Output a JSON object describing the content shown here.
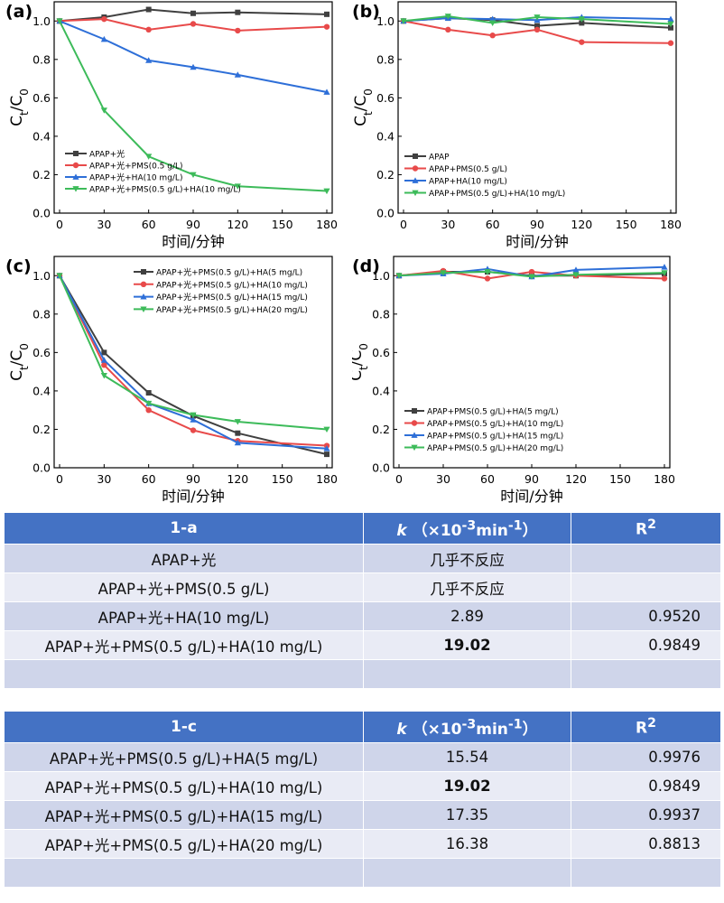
{
  "chart_data": [
    {
      "type": "line",
      "panel_label": "(a)",
      "xlabel": "时间/分钟",
      "ylabel": "Ct/C0",
      "xlim": [
        0,
        180
      ],
      "ylim": [
        0,
        1.1
      ],
      "xticks": [
        0,
        30,
        60,
        90,
        120,
        150,
        180
      ],
      "yticks": [
        0.0,
        0.2,
        0.4,
        0.6,
        0.8,
        1.0
      ],
      "legend_position": "bottom-left",
      "x": [
        0,
        30,
        60,
        90,
        120,
        180
      ],
      "series": [
        {
          "name": "APAP+光",
          "color": "#404040",
          "marker": "square",
          "values": [
            1.0,
            1.02,
            1.06,
            1.04,
            1.045,
            1.035
          ]
        },
        {
          "name": "APAP+光+PMS(0.5 g/L)",
          "color": "#e84a4a",
          "marker": "circle",
          "values": [
            1.0,
            1.01,
            0.955,
            0.985,
            0.95,
            0.97
          ]
        },
        {
          "name": "APAP+光+HA(10 mg/L)",
          "color": "#2e6fd8",
          "marker": "triangle",
          "values": [
            1.0,
            0.905,
            0.795,
            0.76,
            0.72,
            0.63
          ]
        },
        {
          "name": "APAP+光+PMS(0.5 g/L)+HA(10 mg/L)",
          "color": "#3dbb5a",
          "marker": "triangle-down",
          "values": [
            1.0,
            0.535,
            0.295,
            0.2,
            0.14,
            0.115
          ]
        }
      ]
    },
    {
      "type": "line",
      "panel_label": "(b)",
      "xlabel": "时间/分钟",
      "ylabel": "Ct/C0",
      "xlim": [
        0,
        180
      ],
      "ylim": [
        0,
        1.1
      ],
      "xticks": [
        0,
        30,
        60,
        90,
        120,
        150,
        180
      ],
      "yticks": [
        0.0,
        0.2,
        0.4,
        0.6,
        0.8,
        1.0
      ],
      "legend_position": "bottom-left",
      "x": [
        0,
        30,
        60,
        90,
        120,
        180
      ],
      "series": [
        {
          "name": "APAP",
          "color": "#404040",
          "marker": "square",
          "values": [
            1.0,
            1.015,
            1.005,
            0.975,
            0.99,
            0.965
          ]
        },
        {
          "name": "APAP+PMS(0.5 g/L)",
          "color": "#e84a4a",
          "marker": "circle",
          "values": [
            1.0,
            0.955,
            0.925,
            0.955,
            0.89,
            0.885
          ]
        },
        {
          "name": "APAP+HA(10 mg/L)",
          "color": "#2e6fd8",
          "marker": "triangle",
          "values": [
            1.0,
            1.015,
            1.01,
            1.005,
            1.02,
            1.01
          ]
        },
        {
          "name": "APAP+PMS(0.5 g/L)+HA(10 mg/L)",
          "color": "#3dbb5a",
          "marker": "triangle-down",
          "values": [
            1.0,
            1.025,
            0.99,
            1.02,
            1.01,
            0.985
          ]
        }
      ]
    },
    {
      "type": "line",
      "panel_label": "(c)",
      "xlabel": "时间/分钟",
      "ylabel": "Ct/C0",
      "xlim": [
        0,
        180
      ],
      "ylim": [
        0,
        1.1
      ],
      "xticks": [
        0,
        30,
        60,
        90,
        120,
        150,
        180
      ],
      "yticks": [
        0.0,
        0.2,
        0.4,
        0.6,
        0.8,
        1.0
      ],
      "legend_position": "top-right",
      "x": [
        0,
        30,
        60,
        90,
        120,
        180
      ],
      "series": [
        {
          "name": "APAP+光+PMS(0.5 g/L)+HA(5 mg/L)",
          "color": "#404040",
          "marker": "square",
          "values": [
            1.0,
            0.6,
            0.39,
            0.27,
            0.18,
            0.07
          ]
        },
        {
          "name": "APAP+光+PMS(0.5 g/L)+HA(10 mg/L)",
          "color": "#e84a4a",
          "marker": "circle",
          "values": [
            1.0,
            0.535,
            0.3,
            0.195,
            0.14,
            0.115
          ]
        },
        {
          "name": "APAP+光+PMS(0.5 g/L)+HA(15 mg/L)",
          "color": "#2e6fd8",
          "marker": "triangle",
          "values": [
            1.0,
            0.56,
            0.335,
            0.25,
            0.13,
            0.1
          ]
        },
        {
          "name": "APAP+光+PMS(0.5 g/L)+HA(20 mg/L)",
          "color": "#3dbb5a",
          "marker": "triangle-down",
          "values": [
            1.0,
            0.48,
            0.335,
            0.275,
            0.24,
            0.2
          ]
        }
      ]
    },
    {
      "type": "line",
      "panel_label": "(d)",
      "xlabel": "时间/分钟",
      "ylabel": "Ct/C0",
      "xlim": [
        0,
        180
      ],
      "ylim": [
        0,
        1.1
      ],
      "xticks": [
        0,
        30,
        60,
        90,
        120,
        150,
        180
      ],
      "yticks": [
        0.0,
        0.2,
        0.4,
        0.6,
        0.8,
        1.0
      ],
      "legend_position": "bottom-left",
      "x": [
        0,
        30,
        60,
        90,
        120,
        180
      ],
      "series": [
        {
          "name": "APAP+PMS(0.5 g/L)+HA(5 mg/L)",
          "color": "#404040",
          "marker": "square",
          "values": [
            1.0,
            1.02,
            1.02,
            1.0,
            1.0,
            1.01
          ]
        },
        {
          "name": "APAP+PMS(0.5 g/L)+HA(10 mg/L)",
          "color": "#e84a4a",
          "marker": "circle",
          "values": [
            1.0,
            1.025,
            0.985,
            1.02,
            1.0,
            0.985
          ]
        },
        {
          "name": "APAP+PMS(0.5 g/L)+HA(15 mg/L)",
          "color": "#2e6fd8",
          "marker": "triangle",
          "values": [
            1.0,
            1.01,
            1.035,
            0.995,
            1.03,
            1.045
          ]
        },
        {
          "name": "APAP+PMS(0.5 g/L)+HA(20 mg/L)",
          "color": "#3dbb5a",
          "marker": "triangle-down",
          "values": [
            1.0,
            1.015,
            1.02,
            0.995,
            1.005,
            1.015
          ]
        }
      ]
    }
  ],
  "tables": [
    {
      "headers": [
        "1-a",
        "k",
        "（×10",
        "-3",
        "min",
        "-1",
        "）",
        "R",
        "2"
      ],
      "rows": [
        [
          "APAP+光",
          "几乎不反应",
          ""
        ],
        [
          "APAP+光+PMS(0.5 g/L)",
          "几乎不反应",
          ""
        ],
        [
          "APAP+光+HA(10 mg/L)",
          "2.89",
          "0.9520"
        ],
        [
          "APAP+光+PMS(0.5 g/L)+HA(10 mg/L)",
          "19.02",
          "0.9849"
        ],
        [
          "",
          "",
          ""
        ]
      ]
    },
    {
      "headers": [
        "1-c",
        "k",
        "（×10",
        "-3",
        "min",
        "-1",
        "）",
        "R",
        "2"
      ],
      "rows": [
        [
          "APAP+光+PMS(0.5 g/L)+HA(5 mg/L)",
          "15.54",
          "0.9976"
        ],
        [
          "APAP+光+PMS(0.5 g/L)+HA(10 mg/L)",
          "19.02",
          "0.9849"
        ],
        [
          "APAP+光+PMS(0.5 g/L)+HA(15 mg/L)",
          "17.35",
          "0.9937"
        ],
        [
          "APAP+光+PMS(0.5 g/L)+HA(20 mg/L)",
          "16.38",
          "0.8813"
        ],
        [
          "",
          "",
          ""
        ]
      ]
    }
  ]
}
